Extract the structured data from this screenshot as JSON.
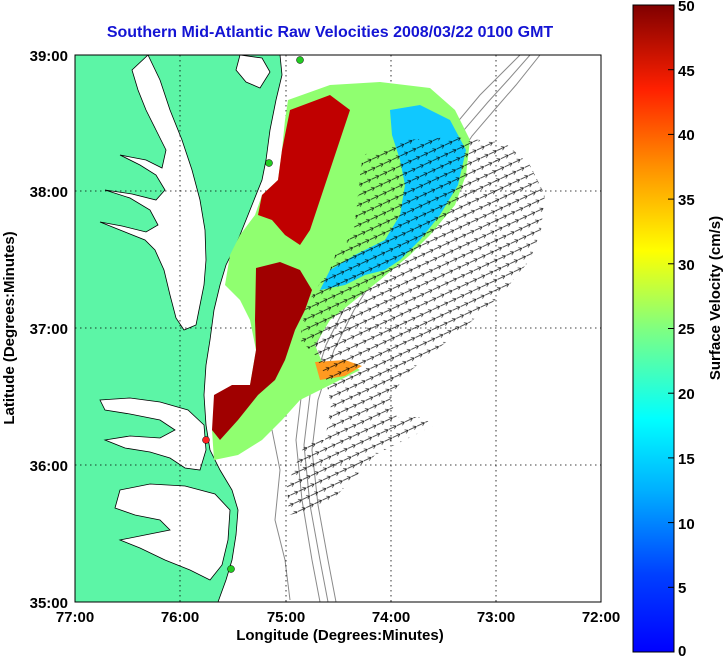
{
  "title": "Southern Mid-Atlantic Raw Velocities 2008/03/22 0100 GMT",
  "map": {
    "x_axis_label": "Longitude (Degrees:Minutes)",
    "y_axis_label": "Latitude (Degrees:Minutes)",
    "x_ticks": [
      "77:00",
      "76:00",
      "75:00",
      "74:00",
      "73:00",
      "72:00"
    ],
    "y_ticks": [
      "39:00",
      "38:00",
      "37:00",
      "36:00",
      "35:00"
    ],
    "grid": "dotted",
    "land_color": "#5cf5a6",
    "coastline_color": "#000000",
    "bathymetry_contour_color": "#808080",
    "station_markers": [
      {
        "color": "#22cc22"
      },
      {
        "color": "#22cc22"
      },
      {
        "color": "#ff2020"
      },
      {
        "color": "#22cc22"
      }
    ]
  },
  "colorbar": {
    "label": "Surface Velocity (cm/s)",
    "ticks": [
      "50",
      "45",
      "40",
      "35",
      "30",
      "25",
      "20",
      "15",
      "10",
      "5",
      "0"
    ],
    "range": [
      0,
      50
    ],
    "colormap": "jet"
  }
}
